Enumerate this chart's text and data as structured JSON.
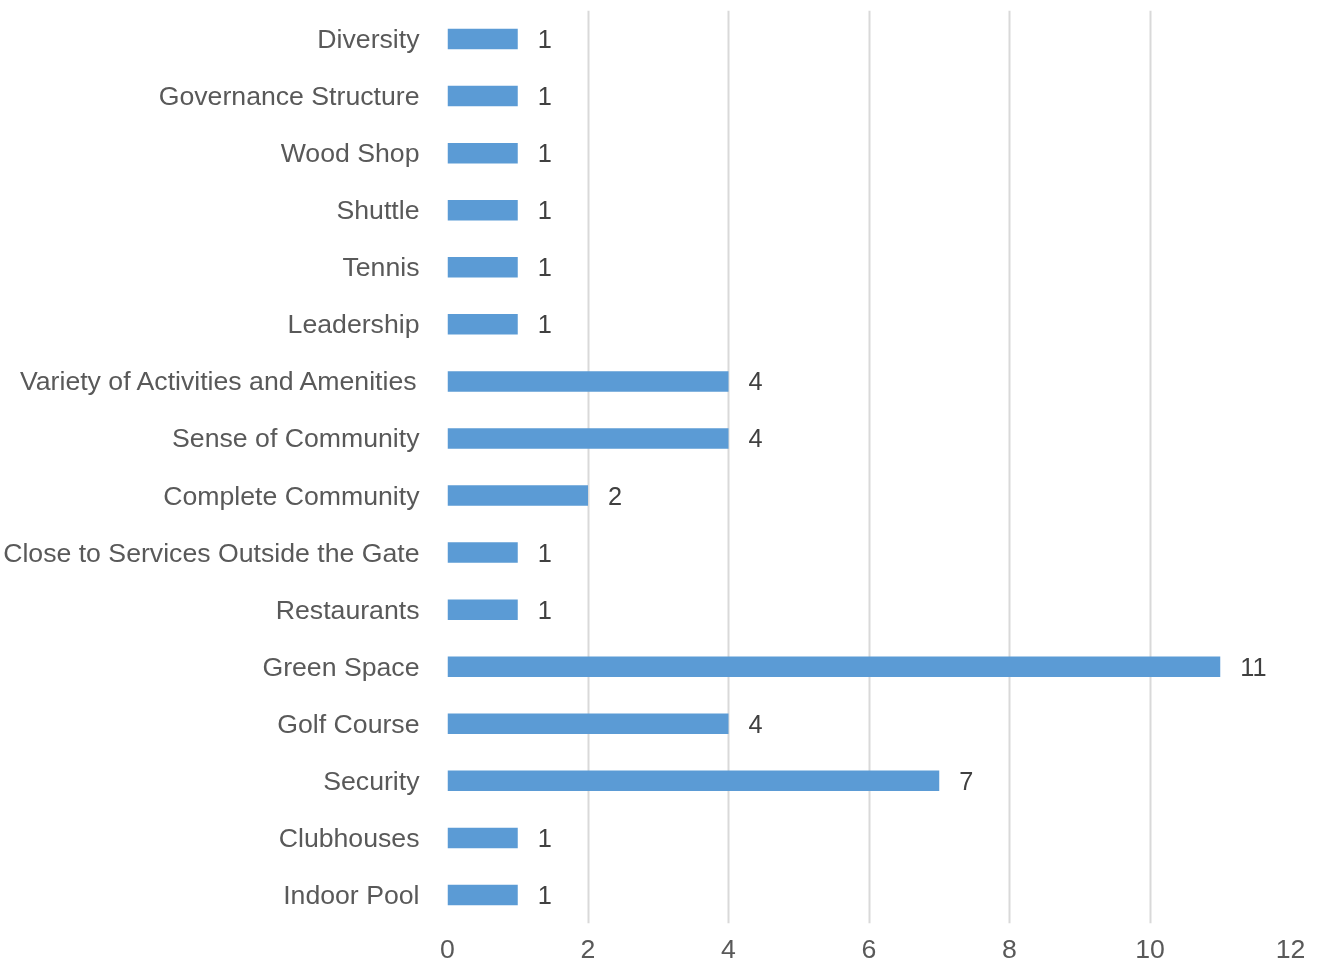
{
  "chart_data": {
    "type": "bar",
    "orientation": "horizontal",
    "categories": [
      "Diversity",
      "Governance Structure",
      "Wood Shop",
      "Shuttle",
      "Tennis",
      "Leadership",
      "Variety of Activities and Amenities",
      "Sense of Community",
      "Complete Community",
      "Close to Services Outside the Gate",
      "Restaurants",
      "Green Space",
      "Golf Course",
      "Security",
      "Clubhouses",
      "Indoor Pool"
    ],
    "values": [
      1,
      1,
      1,
      1,
      1,
      1,
      4,
      4,
      2,
      1,
      1,
      11,
      4,
      7,
      1,
      1
    ],
    "color": "#5b9bd5",
    "xlim": [
      0,
      12
    ],
    "xticks": [
      0,
      2,
      4,
      6,
      8,
      10,
      12
    ],
    "grid": "x",
    "data_labels": true
  }
}
